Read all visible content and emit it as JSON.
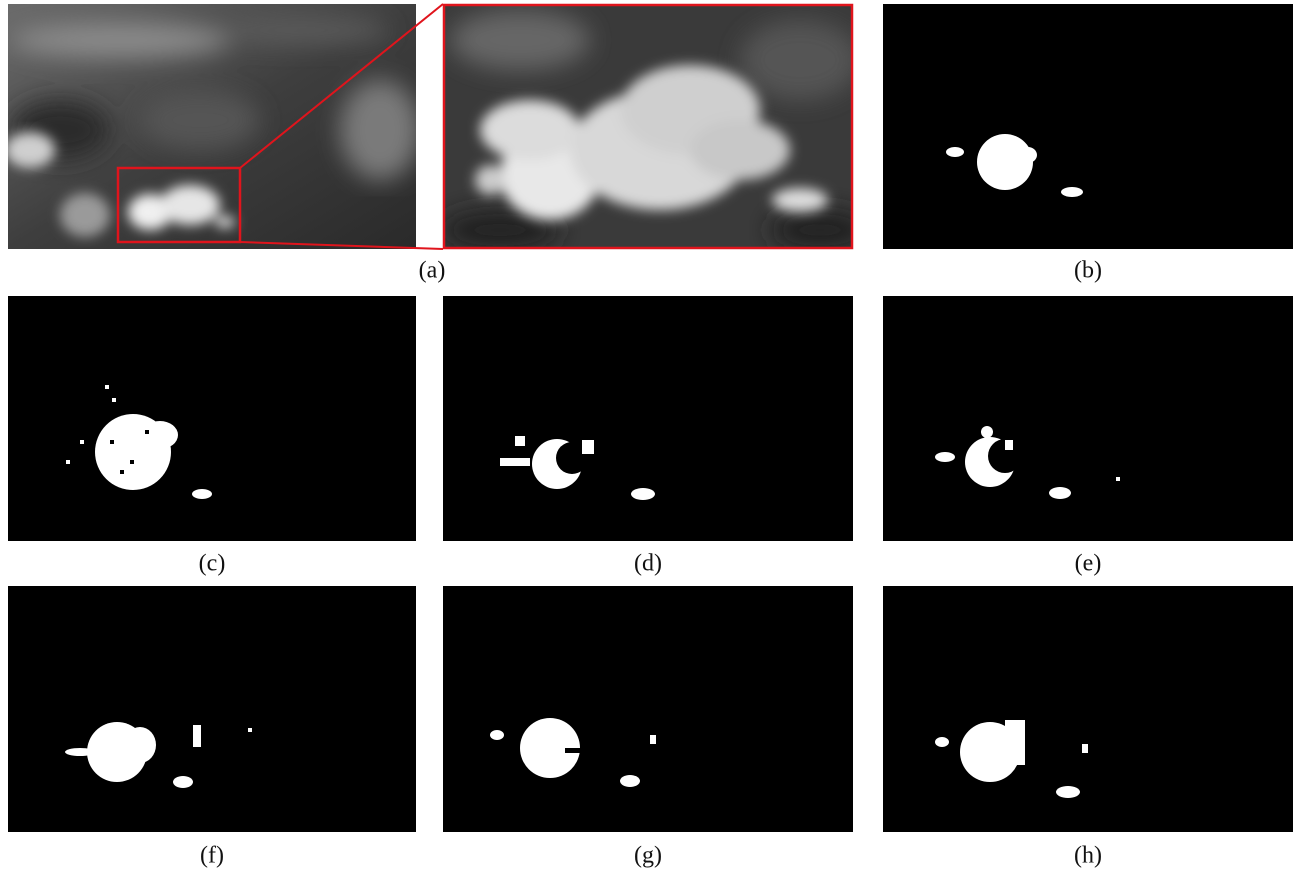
{
  "labels": [
    "(a)",
    "(b)",
    "(c)",
    "(d)",
    "(e)",
    "(f)",
    "(g)",
    "(h)"
  ]
}
